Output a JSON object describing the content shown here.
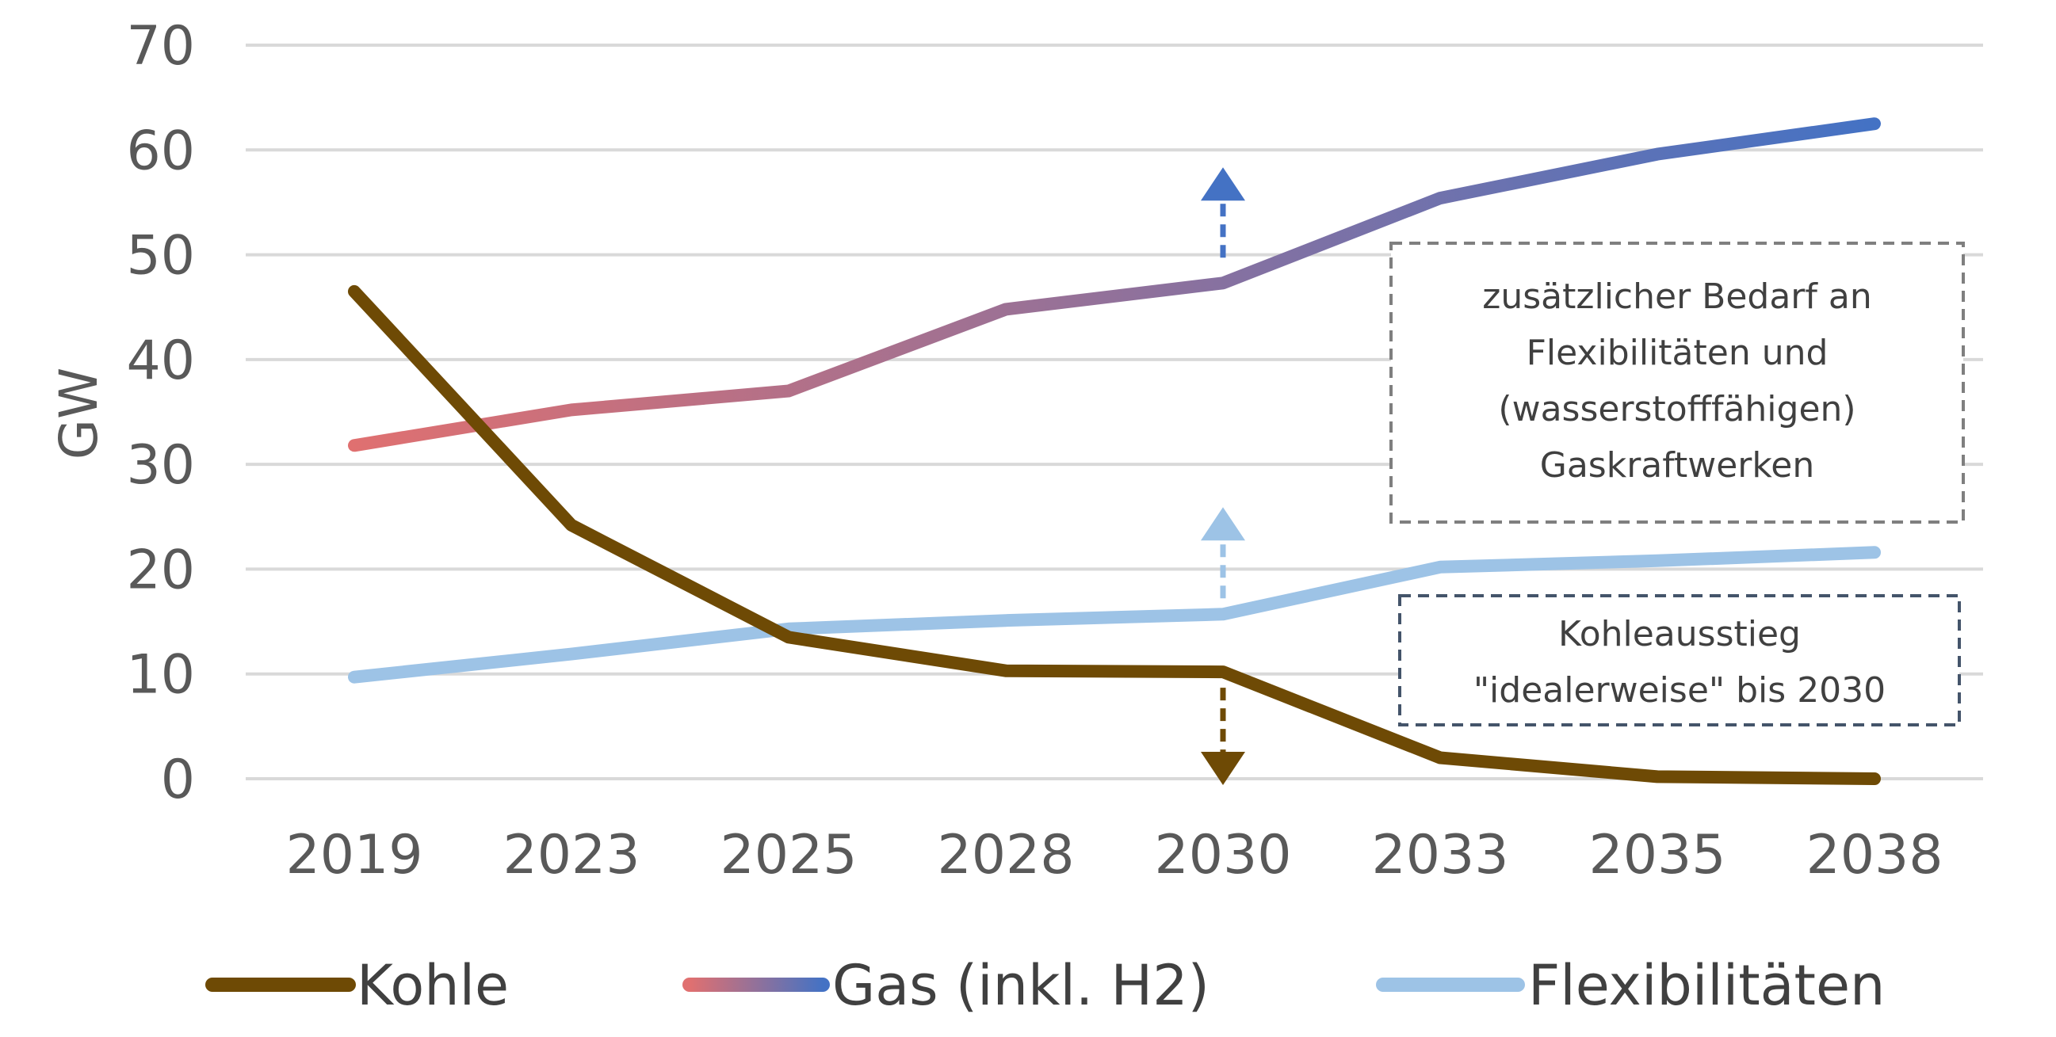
{
  "chart_data": {
    "type": "line",
    "ylabel": "GW",
    "xlabel": "",
    "ylim": [
      0,
      70
    ],
    "yticks": [
      0,
      10,
      20,
      30,
      40,
      50,
      60,
      70
    ],
    "categories": [
      "2019",
      "2023",
      "2025",
      "2028",
      "2030",
      "2033",
      "2035",
      "2038"
    ],
    "grid": "horizontal",
    "legend_position": "bottom",
    "series": [
      {
        "name": "Kohle",
        "color": "#6E4A05",
        "values": [
          46.5,
          24.2,
          13.5,
          10.3,
          10.2,
          2.0,
          0.2,
          0.0
        ]
      },
      {
        "name": "Gas (inkl. H2)",
        "color": "#4472C4",
        "gradient_start": "#E07070",
        "gradient_end": "#4472C4",
        "values": [
          31.8,
          35.2,
          37.0,
          44.8,
          47.3,
          55.4,
          59.6,
          62.5
        ]
      },
      {
        "name": "Flexibilitäten",
        "color": "#9DC3E6",
        "values": [
          9.7,
          11.9,
          14.3,
          15.1,
          15.7,
          20.2,
          20.8,
          21.6
        ]
      }
    ],
    "annotations": [
      {
        "id": "gas-arrow",
        "category": "2030",
        "direction": "up",
        "color": "#4472C4"
      },
      {
        "id": "flex-arrow",
        "category": "2030",
        "direction": "up",
        "color": "#9DC3E6"
      },
      {
        "id": "coal-arrow",
        "category": "2030",
        "direction": "down",
        "color": "#6E4A05"
      }
    ],
    "notes": {
      "demand": [
        "zusätzlicher Bedarf an",
        "Flexibilitäten und",
        "(wasserstofffähigen)",
        "Gaskraftwerken"
      ],
      "coal_exit": [
        "Kohleausstieg",
        "\"idealerweise\" bis 2030"
      ]
    }
  }
}
